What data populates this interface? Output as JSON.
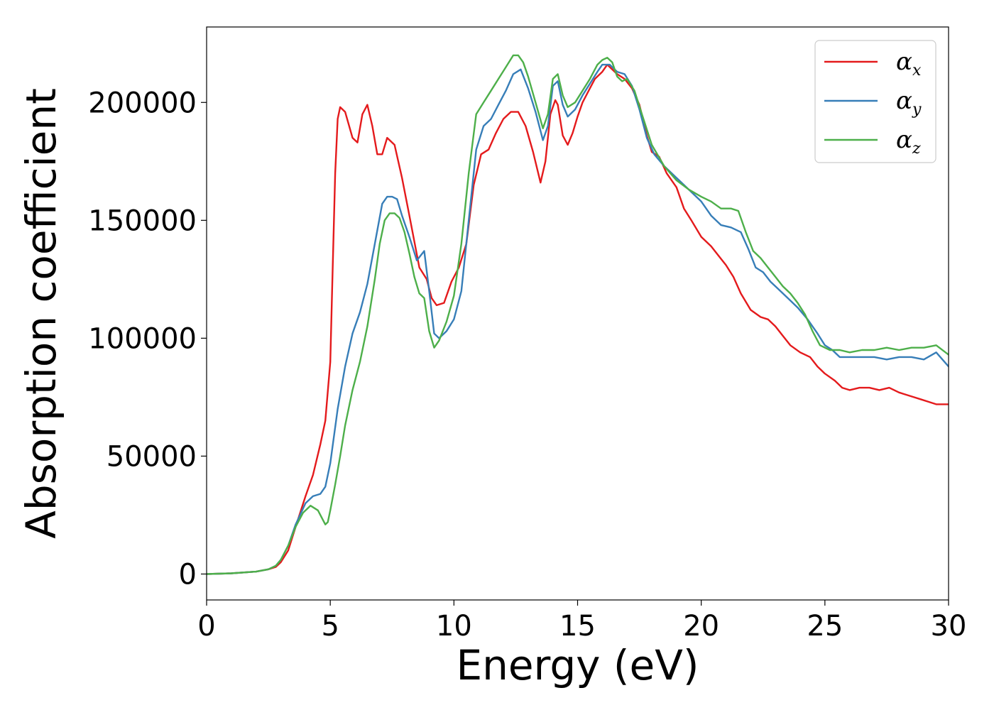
{
  "chart_data": {
    "type": "line",
    "xlabel": "Energy (eV)",
    "ylabel": "Absorption coefficient",
    "xlim": [
      0,
      30
    ],
    "ylim": [
      -11000,
      232000
    ],
    "xticks": [
      0,
      5,
      10,
      15,
      20,
      25,
      30
    ],
    "xtick_labels": [
      "0",
      "5",
      "10",
      "15",
      "20",
      "25",
      "30"
    ],
    "yticks": [
      0,
      50000,
      100000,
      150000,
      200000
    ],
    "ytick_labels": [
      "0",
      "50000",
      "100000",
      "150000",
      "200000"
    ],
    "grid": false,
    "legend_position": "top-right",
    "series": [
      {
        "name": "αx",
        "name_base": "α",
        "name_sub": "x",
        "color": "#e41a1c",
        "x": [
          0,
          1,
          2,
          2.5,
          2.8,
          3,
          3.3,
          3.6,
          4,
          4.3,
          4.6,
          4.8,
          5,
          5.1,
          5.2,
          5.3,
          5.4,
          5.6,
          5.9,
          6.1,
          6.3,
          6.5,
          6.7,
          6.9,
          7.1,
          7.3,
          7.6,
          7.9,
          8.2,
          8.6,
          8.9,
          9.1,
          9.3,
          9.6,
          9.9,
          10.2,
          10.5,
          10.8,
          11.1,
          11.4,
          11.7,
          12,
          12.3,
          12.6,
          12.9,
          13.2,
          13.5,
          13.7,
          13.9,
          14.1,
          14.2,
          14.4,
          14.6,
          14.8,
          15,
          15.2,
          15.5,
          15.7,
          16,
          16.2,
          16.4,
          16.6,
          16.9,
          17.2,
          17.5,
          17.8,
          18,
          18.3,
          18.6,
          19,
          19.3,
          19.6,
          20,
          20.4,
          20.7,
          21,
          21.3,
          21.6,
          22,
          22.4,
          22.7,
          23,
          23.3,
          23.6,
          24,
          24.4,
          24.7,
          25,
          25.4,
          25.7,
          26,
          26.4,
          26.8,
          27.2,
          27.6,
          28,
          28.3,
          28.6,
          28.9,
          29.2,
          29.5,
          30
        ],
        "y": [
          0,
          300,
          1000,
          2000,
          3000,
          5000,
          10000,
          20000,
          33000,
          42000,
          55000,
          65000,
          90000,
          130000,
          170000,
          193000,
          198000,
          196000,
          185000,
          183000,
          195000,
          199000,
          190000,
          178000,
          178000,
          185000,
          182000,
          168000,
          152000,
          130000,
          125000,
          117000,
          114000,
          115000,
          124000,
          130000,
          140000,
          165000,
          178000,
          180000,
          187000,
          193000,
          196000,
          196000,
          190000,
          179000,
          166000,
          175000,
          195000,
          201000,
          199000,
          186000,
          182000,
          187000,
          194000,
          200000,
          206000,
          210000,
          213000,
          216000,
          214000,
          212000,
          210000,
          206000,
          199000,
          186000,
          179000,
          177000,
          170000,
          164000,
          155000,
          150000,
          143000,
          139000,
          135000,
          131000,
          126000,
          119000,
          112000,
          109000,
          108000,
          105000,
          101000,
          97000,
          94000,
          92000,
          88000,
          85000,
          82000,
          79000,
          78000,
          79000,
          79000,
          78000,
          79000,
          77000,
          76000,
          75000,
          74000,
          73000,
          72000,
          72000
        ]
      },
      {
        "name": "αy",
        "name_base": "α",
        "name_sub": "y",
        "color": "#377eb8",
        "x": [
          0,
          1,
          2,
          2.5,
          2.8,
          3,
          3.3,
          3.6,
          4,
          4.3,
          4.6,
          4.8,
          5,
          5.3,
          5.6,
          5.9,
          6.2,
          6.5,
          6.8,
          7.1,
          7.3,
          7.5,
          7.7,
          7.9,
          8.2,
          8.5,
          8.8,
          9,
          9.2,
          9.4,
          9.7,
          10,
          10.3,
          10.6,
          10.9,
          11.2,
          11.5,
          11.8,
          12.1,
          12.4,
          12.7,
          13,
          13.3,
          13.6,
          13.8,
          14,
          14.2,
          14.4,
          14.6,
          14.9,
          15.2,
          15.5,
          15.8,
          16,
          16.3,
          16.6,
          16.9,
          17.2,
          17.5,
          17.8,
          18.1,
          18.5,
          19,
          19.5,
          20,
          20.4,
          20.8,
          21.2,
          21.6,
          21.9,
          22.2,
          22.5,
          22.8,
          23.1,
          23.5,
          23.9,
          24.3,
          24.7,
          25,
          25.3,
          25.6,
          26,
          26.5,
          27,
          27.5,
          28,
          28.5,
          29,
          29.5,
          30
        ],
        "y": [
          0,
          300,
          1000,
          2000,
          3500,
          6000,
          12000,
          21000,
          30000,
          33000,
          34000,
          37000,
          47000,
          70000,
          88000,
          102000,
          111000,
          123000,
          140000,
          157000,
          160000,
          160000,
          159000,
          152000,
          143000,
          133000,
          137000,
          120000,
          102000,
          100000,
          103000,
          108000,
          120000,
          150000,
          180000,
          190000,
          193000,
          199000,
          205000,
          212000,
          214000,
          206000,
          196000,
          184000,
          190000,
          207000,
          209000,
          199000,
          194000,
          197000,
          203000,
          208000,
          213000,
          216000,
          216000,
          213000,
          212000,
          207000,
          197000,
          185000,
          178000,
          173000,
          168000,
          163000,
          158000,
          152000,
          148000,
          147000,
          145000,
          138000,
          130000,
          128000,
          124000,
          121000,
          117000,
          113000,
          108000,
          102000,
          97000,
          95000,
          92000,
          92000,
          92000,
          92000,
          91000,
          92000,
          92000,
          91000,
          94000,
          88000
        ]
      },
      {
        "name": "αz",
        "name_base": "α",
        "name_sub": "z",
        "color": "#4daf4a",
        "x": [
          0,
          1,
          2,
          2.5,
          2.8,
          3,
          3.3,
          3.6,
          3.9,
          4.2,
          4.5,
          4.7,
          4.8,
          4.9,
          5,
          5.2,
          5.4,
          5.6,
          5.9,
          6.2,
          6.5,
          6.8,
          7,
          7.2,
          7.4,
          7.6,
          7.8,
          8,
          8.2,
          8.4,
          8.6,
          8.8,
          9,
          9.2,
          9.4,
          9.7,
          10,
          10.3,
          10.6,
          10.9,
          11.2,
          11.5,
          11.8,
          12.1,
          12.4,
          12.6,
          12.8,
          13,
          13.3,
          13.6,
          13.8,
          14,
          14.2,
          14.4,
          14.6,
          14.9,
          15.2,
          15.5,
          15.8,
          16,
          16.2,
          16.4,
          16.6,
          16.8,
          17,
          17.3,
          17.6,
          18,
          18.5,
          19,
          19.5,
          20,
          20.4,
          20.8,
          21.2,
          21.5,
          21.8,
          22.1,
          22.4,
          22.7,
          23,
          23.3,
          23.6,
          23.9,
          24.2,
          24.5,
          24.8,
          25.2,
          25.6,
          26,
          26.5,
          27,
          27.5,
          28,
          28.5,
          29,
          29.5,
          30
        ],
        "y": [
          0,
          300,
          1000,
          2000,
          3500,
          6000,
          12000,
          20000,
          26000,
          29000,
          27000,
          23000,
          21000,
          22000,
          27000,
          38000,
          50000,
          63000,
          78000,
          90000,
          105000,
          125000,
          140000,
          150000,
          153000,
          153000,
          151000,
          145000,
          136000,
          126000,
          119000,
          117000,
          103000,
          96000,
          99000,
          107000,
          118000,
          140000,
          170000,
          195000,
          200000,
          205000,
          210000,
          215000,
          220000,
          220000,
          217000,
          211000,
          200000,
          189000,
          195000,
          210000,
          212000,
          203000,
          198000,
          200000,
          205000,
          210000,
          216000,
          218000,
          219000,
          217000,
          211000,
          209000,
          210000,
          205000,
          195000,
          182000,
          173000,
          167000,
          163000,
          160000,
          158000,
          155000,
          155000,
          154000,
          145000,
          137000,
          134000,
          130000,
          126000,
          122000,
          119000,
          115000,
          110000,
          103000,
          97000,
          95000,
          95000,
          94000,
          95000,
          95000,
          96000,
          95000,
          96000,
          96000,
          97000,
          93000
        ]
      }
    ]
  }
}
